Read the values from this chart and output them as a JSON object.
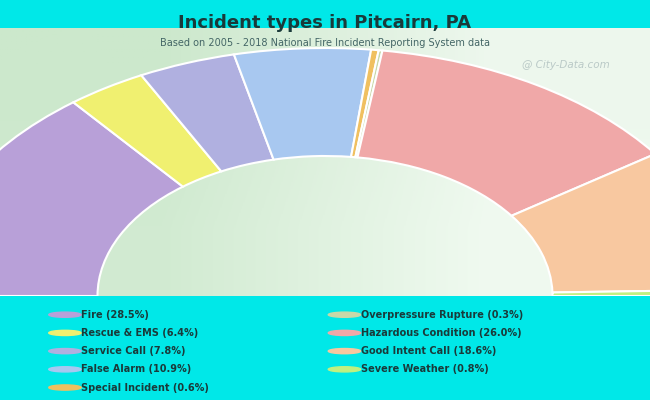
{
  "title": "Incident types in Pitcairn, PA",
  "subtitle": "Based on 2005 - 2018 National Fire Incident Reporting System data",
  "background_cyan": "#00e8e8",
  "chart_bg_left": "#c8e8c8",
  "chart_bg_right": "#e8f4e8",
  "categories": [
    "Fire",
    "Rescue & EMS",
    "Service Call",
    "False Alarm",
    "Special Incident",
    "Overpressure Rupture",
    "Hazardous Condition",
    "Good Intent Call",
    "Severe Weather"
  ],
  "values": [
    28.5,
    6.4,
    7.8,
    10.9,
    0.6,
    0.3,
    26.0,
    18.6,
    0.8
  ],
  "colors": [
    "#b8a0d8",
    "#f0f070",
    "#b0b0e0",
    "#a8c8f0",
    "#f0c060",
    "#c8d8a8",
    "#f0a8a8",
    "#f8c8a0",
    "#c0f080"
  ],
  "legend_labels": [
    "Fire (28.5%)",
    "Rescue & EMS (6.4%)",
    "Service Call (7.8%)",
    "False Alarm (10.9%)",
    "Special Incident (0.6%)",
    "Overpressure Rupture (0.3%)",
    "Hazardous Condition (26.0%)",
    "Good Intent Call (18.6%)",
    "Severe Weather (0.8%)"
  ],
  "watermark": "@ City-Data.com"
}
